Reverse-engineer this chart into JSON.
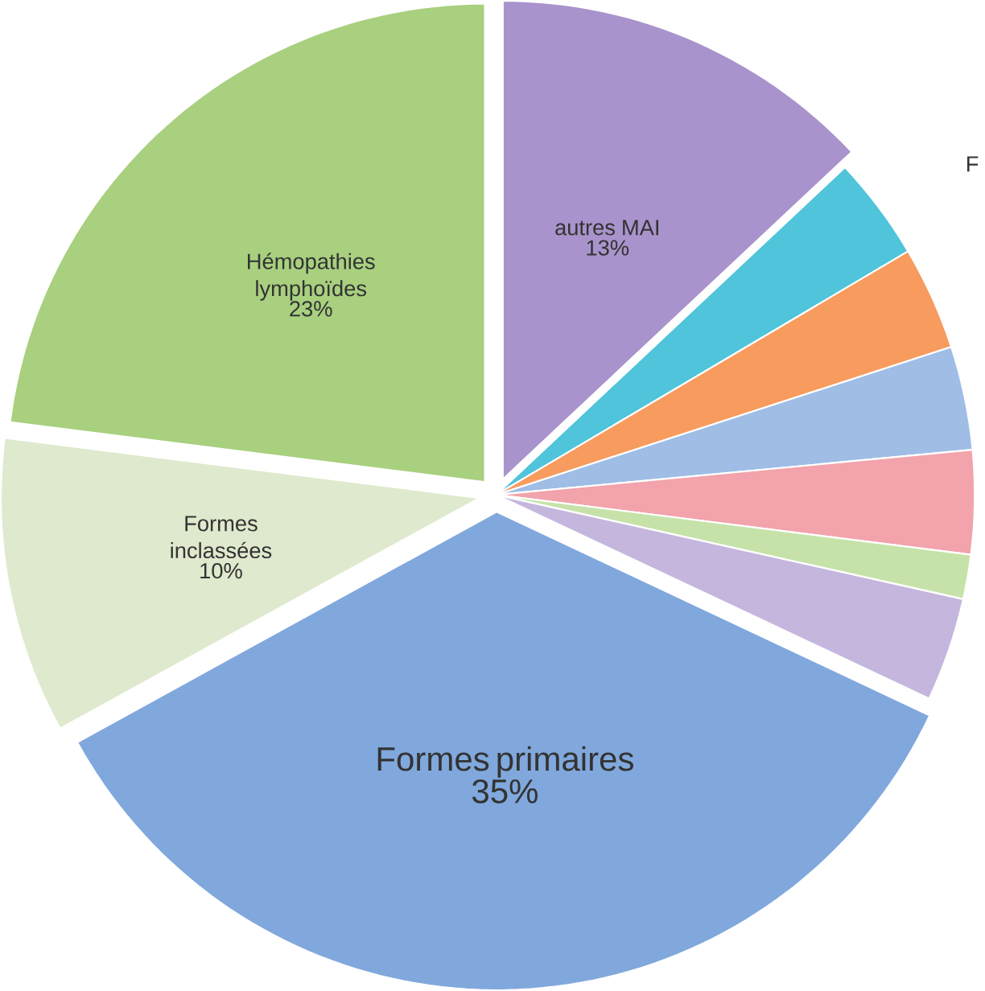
{
  "chart_data": {
    "type": "pie",
    "categories": [
      "autres MAI",
      null,
      null,
      null,
      null,
      null,
      null,
      "Formes primaires",
      "Formes inclassées",
      "Hémopathies lymphoïdes"
    ],
    "values": [
      13,
      3.5,
      3.5,
      3.5,
      3.5,
      1.5,
      3.5,
      35,
      10,
      23
    ],
    "colors": [
      "#a993cc",
      "#4fc4da",
      "#f79c5e",
      "#9fbde5",
      "#f2a3ab",
      "#c6e2a9",
      "#c5b6de",
      "#80a8dc",
      "#dfe9cd",
      "#a8d07f"
    ],
    "value_labels": [
      "13%",
      null,
      null,
      null,
      null,
      null,
      null,
      "35%",
      "10%",
      "23%"
    ],
    "annotations": [
      "F"
    ]
  }
}
